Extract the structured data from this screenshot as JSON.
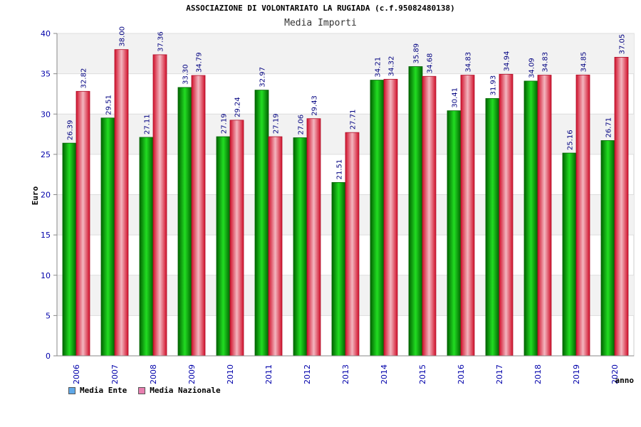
{
  "chart_data": {
    "type": "bar",
    "title": "ASSOCIAZIONE DI VOLONTARIATO LA RUGIADA (c.f.95082480138)",
    "subtitle": "Media Importi",
    "xlabel": "anno",
    "ylabel": "Euro",
    "ylim": [
      0,
      40
    ],
    "yticks": [
      0,
      5,
      10,
      15,
      20,
      25,
      30,
      35,
      40
    ],
    "categories": [
      "2006",
      "2007",
      "2008",
      "2009",
      "2010",
      "2011",
      "2012",
      "2013",
      "2014",
      "2015",
      "2016",
      "2017",
      "2018",
      "2019",
      "2020"
    ],
    "series": [
      {
        "name": "Media Ente",
        "color": "#00aa00",
        "values": [
          26.39,
          29.51,
          27.11,
          33.3,
          27.19,
          32.97,
          27.06,
          21.51,
          34.21,
          35.89,
          30.41,
          31.93,
          34.09,
          25.16,
          26.71
        ],
        "labels": [
          "26.39",
          "29.51",
          "27.11",
          "33.30",
          "27.19",
          "32.97",
          "27.06",
          "21.51",
          "34.21",
          "35.89",
          "30.41",
          "31.93",
          "34.09",
          "25.16",
          "26.71"
        ]
      },
      {
        "name": "Media Nazionale",
        "color": "#e8203c",
        "values": [
          32.82,
          38.0,
          37.36,
          34.79,
          29.24,
          27.19,
          29.43,
          27.71,
          34.32,
          34.68,
          34.83,
          34.94,
          34.83,
          34.85,
          37.05
        ],
        "labels": [
          "32.82",
          "38.00",
          "37.36",
          "34.79",
          "29.24",
          "27.19",
          "29.43",
          "27.71",
          "34.32",
          "34.68",
          "34.83",
          "34.94",
          "34.83",
          "34.85",
          "37.05"
        ]
      }
    ],
    "grid": true,
    "legend_position": "bottom-left",
    "legend_swatch_colors": [
      "#5fa8e8",
      "#e87fb0"
    ]
  }
}
